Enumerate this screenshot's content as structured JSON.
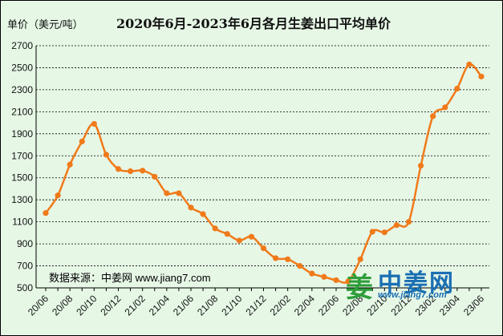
{
  "header": {
    "unit_label": "单价（美元/吨）",
    "title": "2020年6月-2023年6月各月生姜出口平均单价"
  },
  "footer": {
    "source_note": "数据来源：中姜网 www.jiang7.com",
    "logo_text": "中姜网",
    "logo_mark": "姜",
    "logo_url": "www.jiang7.com"
  },
  "colors": {
    "background": "#e6f7e6",
    "line": "#f07a1a",
    "grid": "#000000",
    "logo": "#1a6fb3"
  },
  "chart_data": {
    "type": "line",
    "title": "2020年6月-2023年6月各月生姜出口平均单价",
    "ylabel": "单价（美元/吨）",
    "xlabel": "",
    "ylim": [
      500,
      2700
    ],
    "yticks": [
      500,
      700,
      900,
      1100,
      1300,
      1500,
      1700,
      1900,
      2100,
      2300,
      2500,
      2700
    ],
    "grid": "horizontal-dashed",
    "x_tick_labels": [
      "20/06",
      "20/08",
      "20/10",
      "20/12",
      "21/02",
      "21/04",
      "21/06",
      "21/08",
      "21/10",
      "21/12",
      "22/02",
      "22/04",
      "22/06",
      "22/08",
      "22/10",
      "22/12",
      "23/02",
      "23/04",
      "23/06"
    ],
    "categories": [
      "20/06",
      "20/07",
      "20/08",
      "20/09",
      "20/10",
      "20/11",
      "20/12",
      "21/01",
      "21/02",
      "21/03",
      "21/04",
      "21/05",
      "21/06",
      "21/07",
      "21/08",
      "21/09",
      "21/10",
      "21/11",
      "21/12",
      "22/01",
      "22/02",
      "22/03",
      "22/04",
      "22/05",
      "22/06",
      "22/07",
      "22/08",
      "22/09",
      "22/10",
      "22/11",
      "22/12",
      "23/01",
      "23/02",
      "23/03",
      "23/04",
      "23/05",
      "23/06"
    ],
    "series": [
      {
        "values": [
          1180,
          1340,
          1620,
          1830,
          1990,
          1710,
          1580,
          1560,
          1565,
          1510,
          1360,
          1360,
          1230,
          1170,
          1040,
          990,
          930,
          965,
          860,
          770,
          760,
          700,
          630,
          600,
          570,
          560,
          760,
          1010,
          1005,
          1070,
          1100,
          1610,
          2060,
          2140,
          2310,
          2530,
          2420
        ],
        "color": "#f07a1a"
      }
    ]
  }
}
